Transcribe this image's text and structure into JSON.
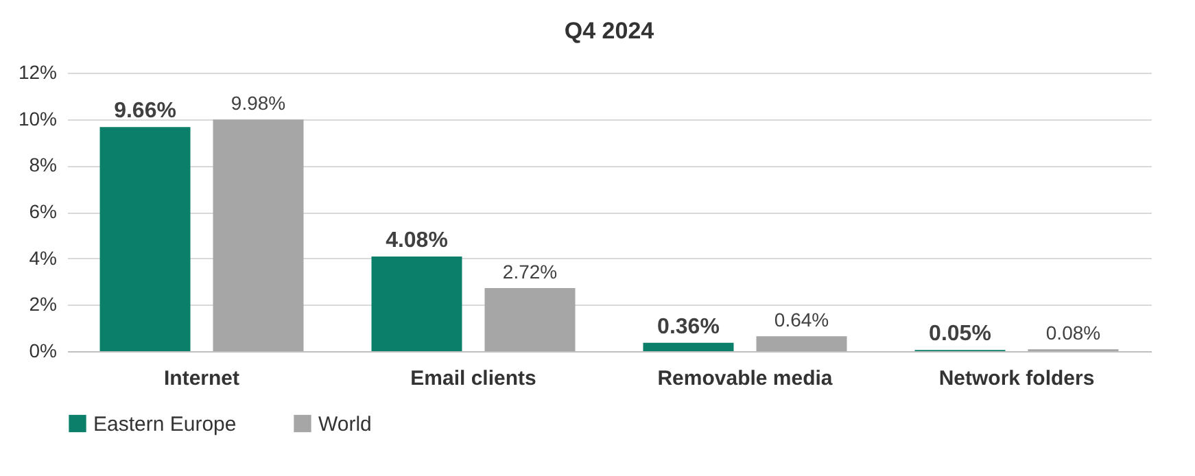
{
  "chart_data": {
    "type": "bar",
    "title": "Q4 2024",
    "categories": [
      "Internet",
      "Email clients",
      "Removable media",
      "Network folders"
    ],
    "series": [
      {
        "name": "Eastern Europe",
        "color": "#0b7f6a",
        "values": [
          9.66,
          4.08,
          0.36,
          0.05
        ],
        "value_labels": [
          "9.66%",
          "4.08%",
          "0.36%",
          "0.05%"
        ]
      },
      {
        "name": "World",
        "color": "#a6a6a6",
        "values": [
          9.98,
          2.72,
          0.64,
          0.08
        ],
        "value_labels": [
          "9.98%",
          "2.72%",
          "0.64%",
          "0.08%"
        ]
      }
    ],
    "ylim": [
      0,
      12
    ],
    "yticks": [
      {
        "value": 0,
        "label": "0%"
      },
      {
        "value": 2,
        "label": "2%"
      },
      {
        "value": 4,
        "label": "4%"
      },
      {
        "value": 6,
        "label": "6%"
      },
      {
        "value": 8,
        "label": "8%"
      },
      {
        "value": 10,
        "label": "10%"
      },
      {
        "value": 12,
        "label": "12%"
      }
    ],
    "grid": "y",
    "legend": "bottom"
  }
}
